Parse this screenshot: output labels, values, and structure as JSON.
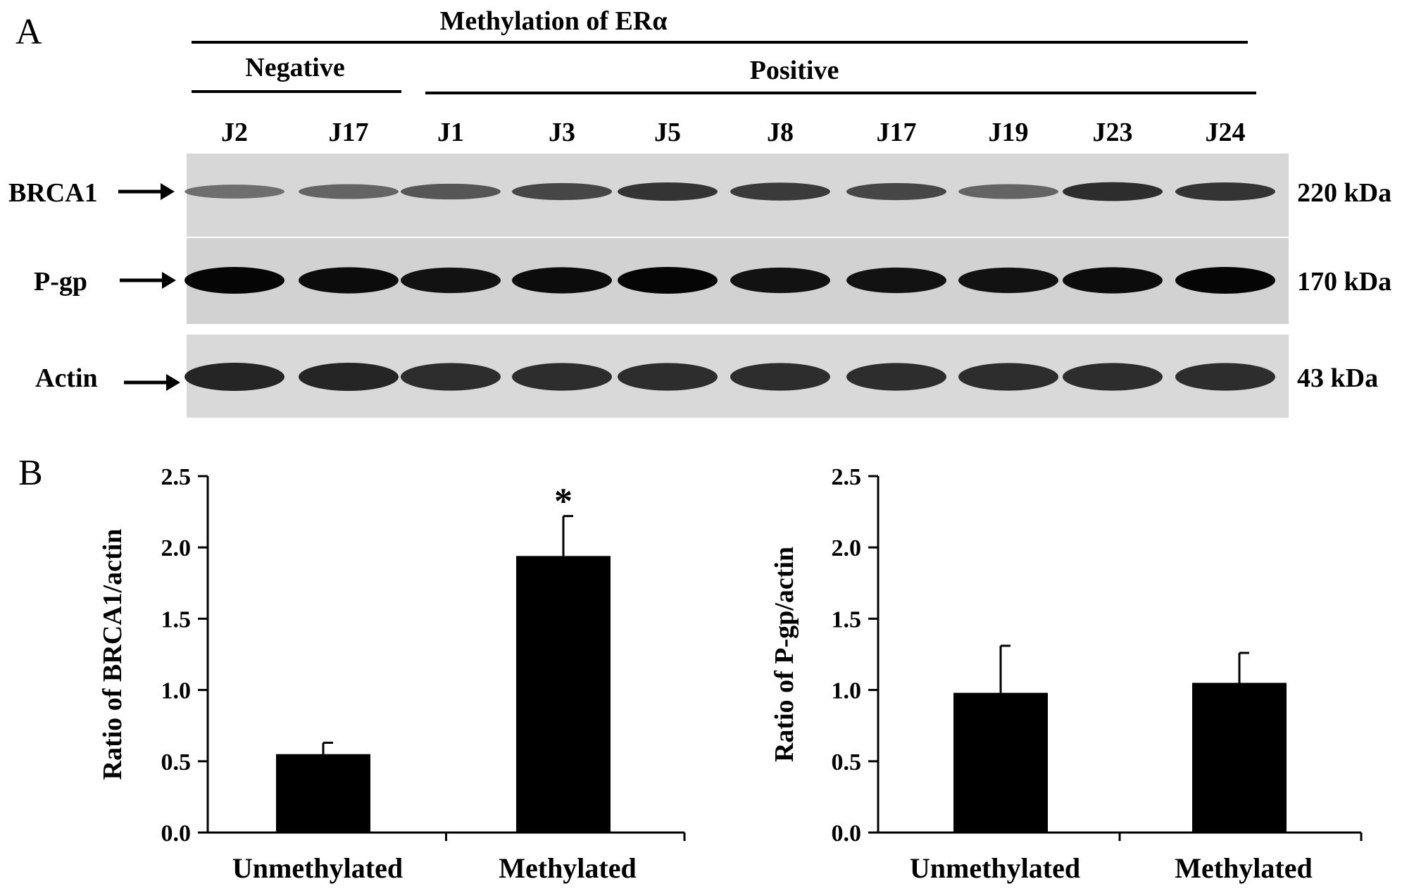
{
  "figure": {
    "panel_a_label": "A",
    "panel_b_label": "B",
    "header_title": "Methylation of ERα",
    "negative_label": "Negative",
    "positive_label": "Positive",
    "lanes": [
      "J2",
      "J17",
      "J1",
      "J3",
      "J5",
      "J8",
      "J17",
      "J19",
      "J23",
      "J24"
    ],
    "blots": [
      {
        "protein": "BRCA1",
        "size": "220 kDa",
        "band_color": "#222222",
        "lane_intensity": [
          0.35,
          0.45,
          0.55,
          0.7,
          0.85,
          0.8,
          0.7,
          0.45,
          0.9,
          0.85
        ]
      },
      {
        "protein": "P-gp",
        "size": "170 kDa",
        "band_color": "#050505",
        "lane_intensity": [
          1,
          0.95,
          0.9,
          0.95,
          1,
          0.9,
          0.9,
          0.9,
          0.95,
          1
        ]
      },
      {
        "protein": "Actin",
        "size": "43 kDa",
        "band_color": "#1a1a1a",
        "lane_intensity": [
          0.9,
          0.9,
          0.85,
          0.85,
          0.85,
          0.85,
          0.85,
          0.85,
          0.85,
          0.85
        ]
      }
    ]
  },
  "chart_data": [
    {
      "type": "bar",
      "categories": [
        "Unmethylated",
        "Methylated"
      ],
      "values": [
        0.55,
        1.94
      ],
      "errors": [
        0.08,
        0.28
      ],
      "annotations": [
        "",
        "*"
      ],
      "ylabel": "Ratio of BRCA1/actin",
      "ylim": [
        0,
        2.5
      ],
      "yticks": [
        "0.0",
        "0.5",
        "1.0",
        "1.5",
        "2.0",
        "2.5"
      ],
      "bar_color": "#000000"
    },
    {
      "type": "bar",
      "categories": [
        "Unmethylated",
        "Methylated"
      ],
      "values": [
        0.98,
        1.05
      ],
      "errors": [
        0.33,
        0.21
      ],
      "annotations": [
        "",
        ""
      ],
      "ylabel": "Ratio of P-gp/actin",
      "ylim": [
        0,
        2.5
      ],
      "yticks": [
        "0.0",
        "0.5",
        "1.0",
        "1.5",
        "2.0",
        "2.5"
      ],
      "bar_color": "#000000"
    }
  ]
}
